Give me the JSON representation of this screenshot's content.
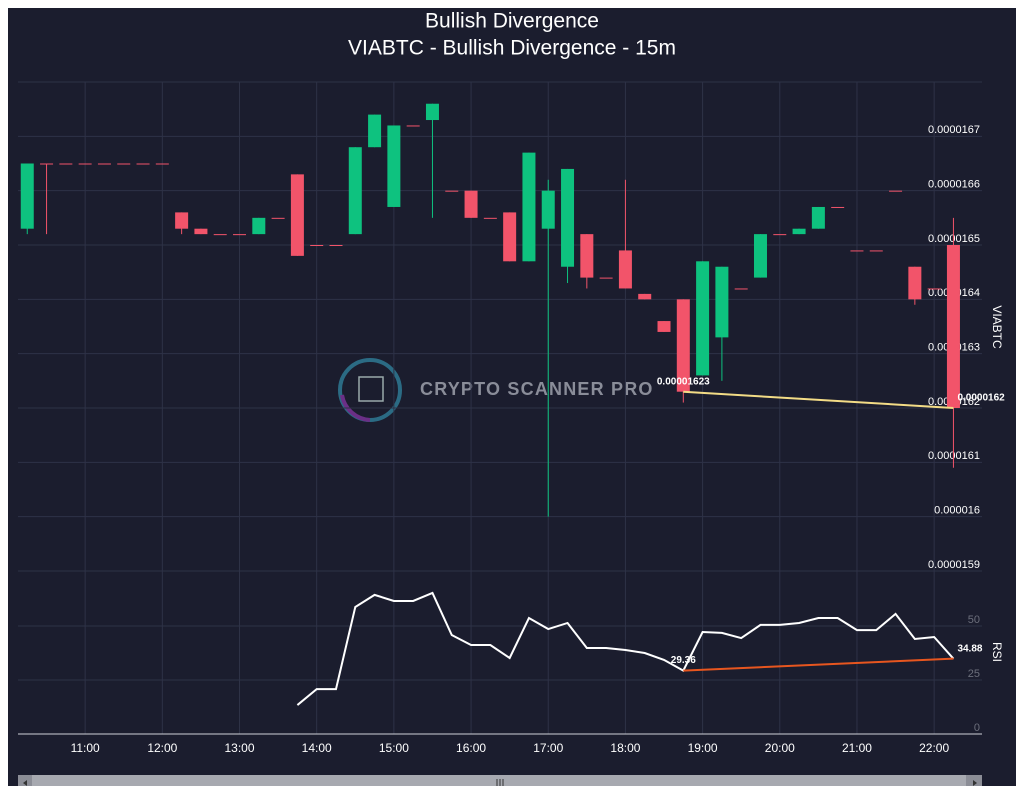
{
  "chart_data": {
    "type": "candlestick",
    "title": "Bullish Divergence",
    "subtitle": "VIABTC - Bullish Divergence - 15m",
    "y_label": "VIABTC",
    "watermark": "CRYPTO SCANNER PRO",
    "grid": true,
    "up_color": "#0ec27f",
    "down_color": "#f2546a",
    "x": [
      10.25,
      10.5,
      10.75,
      11,
      11.25,
      11.5,
      11.75,
      12,
      12.25,
      12.5,
      12.75,
      13,
      13.25,
      13.5,
      13.75,
      14,
      14.25,
      14.5,
      14.75,
      15,
      15.25,
      15.5,
      15.75,
      16,
      16.25,
      16.5,
      16.75,
      17,
      17.25,
      17.5,
      17.75,
      18,
      18.25,
      18.5,
      18.75,
      19,
      19.25,
      19.5,
      19.75,
      20,
      20.25,
      20.5,
      20.75,
      21,
      21.25,
      21.5,
      21.75,
      22,
      22.25
    ],
    "xlim": [
      10.13,
      22.62
    ],
    "xticks": [
      {
        "value": 11,
        "label": "11:00"
      },
      {
        "value": 12,
        "label": "12:00"
      },
      {
        "value": 13,
        "label": "13:00"
      },
      {
        "value": 14,
        "label": "14:00"
      },
      {
        "value": 15,
        "label": "15:00"
      },
      {
        "value": 16,
        "label": "16:00"
      },
      {
        "value": 17,
        "label": "17:00"
      },
      {
        "value": 18,
        "label": "18:00"
      },
      {
        "value": 19,
        "label": "19:00"
      },
      {
        "value": 20,
        "label": "20:00"
      },
      {
        "value": 21,
        "label": "21:00"
      },
      {
        "value": 22,
        "label": "22:00"
      }
    ],
    "open": [
      1.653e-05,
      1.665e-05,
      1.665e-05,
      1.665e-05,
      1.665e-05,
      1.665e-05,
      1.665e-05,
      1.665e-05,
      1.656e-05,
      1.653e-05,
      1.652e-05,
      1.652e-05,
      1.652e-05,
      1.655e-05,
      1.663e-05,
      1.65e-05,
      1.65e-05,
      1.652e-05,
      1.668e-05,
      1.657e-05,
      1.672e-05,
      1.673e-05,
      1.66e-05,
      1.66e-05,
      1.655e-05,
      1.656e-05,
      1.647e-05,
      1.653e-05,
      1.646e-05,
      1.652e-05,
      1.644e-05,
      1.649e-05,
      1.641e-05,
      1.636e-05,
      1.64e-05,
      1.626e-05,
      1.633e-05,
      1.642e-05,
      1.644e-05,
      1.652e-05,
      1.652e-05,
      1.653e-05,
      1.657e-05,
      1.649e-05,
      1.649e-05,
      1.66e-05,
      1.646e-05,
      1.642e-05,
      1.65e-05
    ],
    "high": [
      1.665e-05,
      1.665e-05,
      1.665e-05,
      1.665e-05,
      1.665e-05,
      1.665e-05,
      1.665e-05,
      1.665e-05,
      1.656e-05,
      1.653e-05,
      1.652e-05,
      1.652e-05,
      1.655e-05,
      1.655e-05,
      1.663e-05,
      1.65e-05,
      1.65e-05,
      1.668e-05,
      1.674e-05,
      1.672e-05,
      1.672e-05,
      1.676e-05,
      1.66e-05,
      1.66e-05,
      1.655e-05,
      1.656e-05,
      1.667e-05,
      1.662e-05,
      1.664e-05,
      1.652e-05,
      1.644e-05,
      1.662e-05,
      1.641e-05,
      1.636e-05,
      1.64e-05,
      1.647e-05,
      1.646e-05,
      1.642e-05,
      1.652e-05,
      1.652e-05,
      1.653e-05,
      1.657e-05,
      1.657e-05,
      1.649e-05,
      1.649e-05,
      1.66e-05,
      1.646e-05,
      1.642e-05,
      1.655e-05
    ],
    "low": [
      1.652e-05,
      1.652e-05,
      1.665e-05,
      1.665e-05,
      1.665e-05,
      1.665e-05,
      1.665e-05,
      1.665e-05,
      1.652e-05,
      1.652e-05,
      1.652e-05,
      1.652e-05,
      1.652e-05,
      1.655e-05,
      1.648e-05,
      1.65e-05,
      1.65e-05,
      1.652e-05,
      1.668e-05,
      1.657e-05,
      1.672e-05,
      1.655e-05,
      1.66e-05,
      1.655e-05,
      1.655e-05,
      1.647e-05,
      1.647e-05,
      1.6e-05,
      1.643e-05,
      1.642e-05,
      1.644e-05,
      1.642e-05,
      1.64e-05,
      1.634e-05,
      1.621e-05,
      1.626e-05,
      1.625e-05,
      1.642e-05,
      1.644e-05,
      1.652e-05,
      1.652e-05,
      1.653e-05,
      1.657e-05,
      1.649e-05,
      1.649e-05,
      1.66e-05,
      1.639e-05,
      1.642e-05,
      1.609e-05
    ],
    "close": [
      1.665e-05,
      1.665e-05,
      1.665e-05,
      1.665e-05,
      1.665e-05,
      1.665e-05,
      1.665e-05,
      1.665e-05,
      1.653e-05,
      1.652e-05,
      1.652e-05,
      1.652e-05,
      1.655e-05,
      1.655e-05,
      1.648e-05,
      1.65e-05,
      1.65e-05,
      1.668e-05,
      1.674e-05,
      1.672e-05,
      1.672e-05,
      1.676e-05,
      1.66e-05,
      1.655e-05,
      1.655e-05,
      1.647e-05,
      1.667e-05,
      1.66e-05,
      1.664e-05,
      1.644e-05,
      1.644e-05,
      1.642e-05,
      1.64e-05,
      1.634e-05,
      1.623e-05,
      1.647e-05,
      1.646e-05,
      1.642e-05,
      1.652e-05,
      1.652e-05,
      1.653e-05,
      1.657e-05,
      1.657e-05,
      1.649e-05,
      1.649e-05,
      1.66e-05,
      1.64e-05,
      1.642e-05,
      1.62e-05
    ],
    "ylim": [
      1.59e-05,
      1.68e-05
    ],
    "yticks": [
      1.59e-05,
      1.6e-05,
      1.61e-05,
      1.62e-05,
      1.63e-05,
      1.64e-05,
      1.65e-05,
      1.66e-05,
      1.67e-05
    ],
    "rsi": {
      "label": "RSI",
      "color": "#ffffff",
      "values": [
        null,
        null,
        null,
        null,
        null,
        null,
        null,
        null,
        null,
        null,
        null,
        null,
        null,
        null,
        13.4,
        20.8,
        20.8,
        58.8,
        64.4,
        61.6,
        61.6,
        65.3,
        45.8,
        41.2,
        41.2,
        35.2,
        53.7,
        48.6,
        51.4,
        39.8,
        39.8,
        38.9,
        37.5,
        34.3,
        29.36,
        47.2,
        46.8,
        44.4,
        50.5,
        50.5,
        51.4,
        53.7,
        53.7,
        48.1,
        48.1,
        55.6,
        44.0,
        44.9,
        34.88
      ],
      "ylim": [
        0,
        75
      ],
      "yticks": [
        0,
        25,
        50
      ]
    },
    "divergence": {
      "price": {
        "x": [
          18.75,
          22.25
        ],
        "values": [
          1.623e-05,
          1.62e-05
        ],
        "color": "#f3dc86"
      },
      "rsi": {
        "x": [
          18.75,
          22.25
        ],
        "values": [
          29.36,
          34.88
        ],
        "color": "#e8561f"
      }
    }
  }
}
